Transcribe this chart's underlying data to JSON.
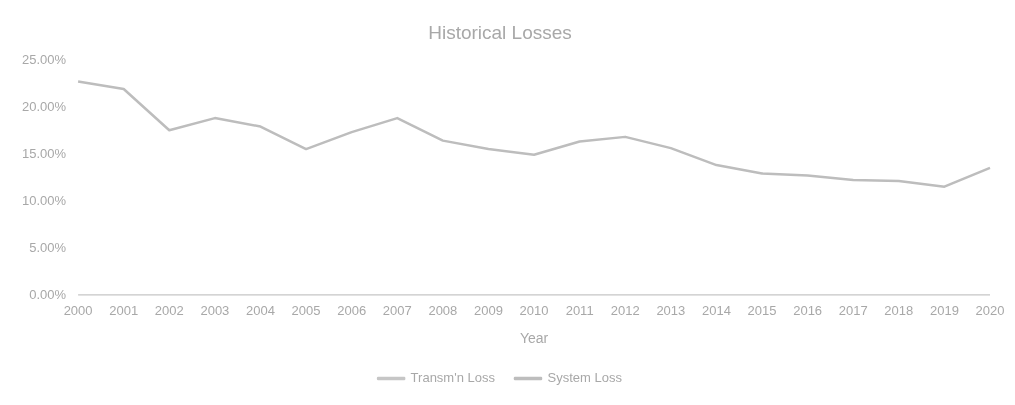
{
  "chart_data": {
    "type": "line",
    "title": "Historical Losses",
    "xlabel": "Year",
    "categories": [
      "2000",
      "2001",
      "2002",
      "2003",
      "2004",
      "2005",
      "2006",
      "2007",
      "2008",
      "2009",
      "2010",
      "2011",
      "2012",
      "2013",
      "2014",
      "2015",
      "2016",
      "2017",
      "2018",
      "2019",
      "2020"
    ],
    "series": [
      {
        "name": "Transm'n Loss",
        "color": "#c6c6c6",
        "values": [
          0,
          0,
          0,
          0,
          0,
          0,
          0,
          0,
          0,
          0,
          0,
          0,
          0,
          0,
          0,
          0,
          0,
          0,
          0,
          0,
          0
        ]
      },
      {
        "name": "System Loss",
        "color": "#bdbdbd",
        "values": [
          22.8,
          22.0,
          17.6,
          18.9,
          18.0,
          15.6,
          17.4,
          18.9,
          16.5,
          15.6,
          15.0,
          16.4,
          16.9,
          15.7,
          13.9,
          13.0,
          12.8,
          12.3,
          12.2,
          11.6,
          13.6
        ]
      }
    ],
    "ylim": [
      0,
      25
    ],
    "yticks": [
      {
        "value": 0,
        "label": "0.00%"
      },
      {
        "value": 5,
        "label": "5.00%"
      },
      {
        "value": 10,
        "label": "10.00%"
      },
      {
        "value": 15,
        "label": "15.00%"
      },
      {
        "value": 20,
        "label": "20.00%"
      },
      {
        "value": 25,
        "label": "25.00%"
      }
    ],
    "grid": false,
    "legend": "bottom",
    "marker": "none",
    "line_style": "solid"
  }
}
